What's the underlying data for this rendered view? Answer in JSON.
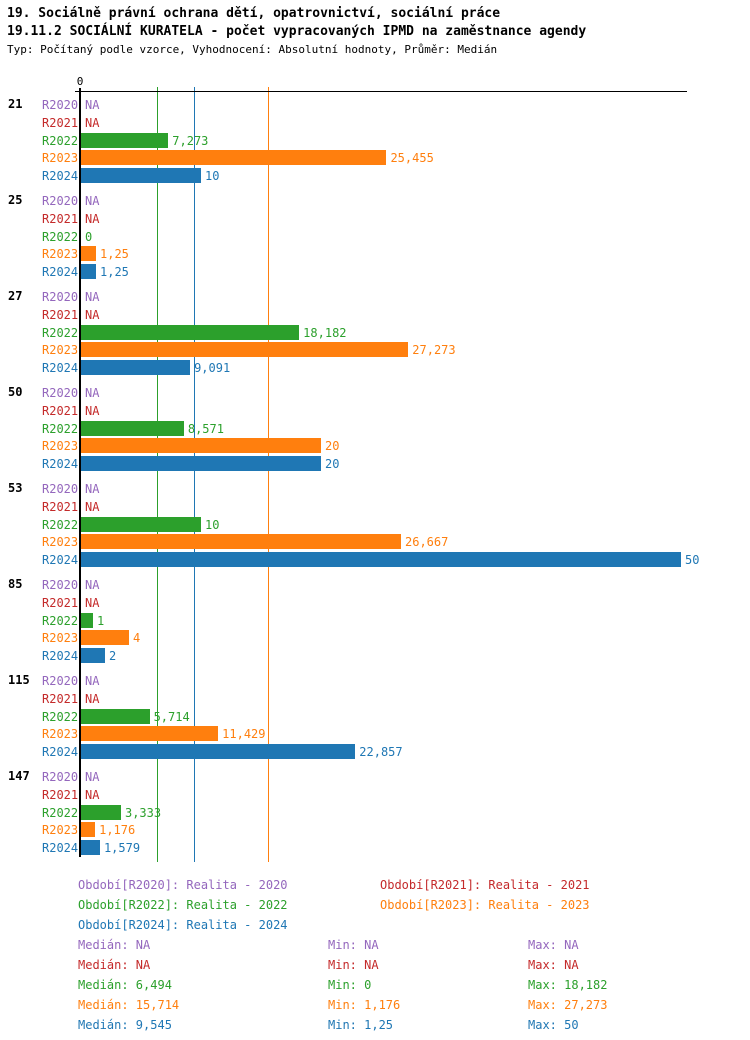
{
  "header": {
    "title_line1": "19. Sociálně právní ochrana dětí, opatrovnictví, sociální práce",
    "title_line2": "19.11.2 SOCIÁLNÍ KURATELA - počet vypracovaných IPMD na zaměstnance agendy",
    "subtitle": "Typ: Počítaný podle vzorce, Vyhodnocení: Absolutní hodnoty, Průměr: Medián"
  },
  "chart_data": {
    "type": "bar",
    "orientation": "horizontal",
    "axis": {
      "zero_label": "0",
      "xlim": [
        0,
        50
      ],
      "grid": "median-lines"
    },
    "series": [
      {
        "id": "R2020",
        "color": "#9467bd",
        "legend_label": "Období[R2020]: Realita - 2020",
        "median_label": "Medián: NA",
        "min_label": "Min: NA",
        "max_label": "Max: NA",
        "median_value": null,
        "min_value": null,
        "max_value": null
      },
      {
        "id": "R2021",
        "color": "#c42a2a",
        "legend_label": "Období[R2021]: Realita - 2021",
        "median_label": "Medián: NA",
        "min_label": "Min: NA",
        "max_label": "Max: NA",
        "median_value": null,
        "min_value": null,
        "max_value": null
      },
      {
        "id": "R2022",
        "color": "#2ca02c",
        "legend_label": "Období[R2022]: Realita - 2022",
        "median_label": "Medián: 6,494",
        "min_label": "Min: 0",
        "max_label": "Max: 18,182",
        "median_value": 6.494,
        "min_value": 0,
        "max_value": 18.182
      },
      {
        "id": "R2023",
        "color": "#ff7f0e",
        "legend_label": "Období[R2023]: Realita - 2023",
        "median_label": "Medián: 15,714",
        "min_label": "Min: 1,176",
        "max_label": "Max: 27,273",
        "median_value": 15.714,
        "min_value": 1.176,
        "max_value": 27.273
      },
      {
        "id": "R2024",
        "color": "#1f77b4",
        "legend_label": "Období[R2024]: Realita - 2024",
        "median_label": "Medián: 9,545",
        "min_label": "Min: 1,25",
        "max_label": "Max: 50",
        "median_value": 9.545,
        "min_value": 1.25,
        "max_value": 50
      }
    ],
    "groups": [
      {
        "label": "21",
        "values": [
          null,
          null,
          7.273,
          25.455,
          10
        ],
        "value_labels": [
          "NA",
          "NA",
          "7,273",
          "25,455",
          "10"
        ]
      },
      {
        "label": "25",
        "values": [
          null,
          null,
          0,
          1.25,
          1.25
        ],
        "value_labels": [
          "NA",
          "NA",
          "0",
          "1,25",
          "1,25"
        ]
      },
      {
        "label": "27",
        "values": [
          null,
          null,
          18.182,
          27.273,
          9.091
        ],
        "value_labels": [
          "NA",
          "NA",
          "18,182",
          "27,273",
          "9,091"
        ]
      },
      {
        "label": "50",
        "values": [
          null,
          null,
          8.571,
          20,
          20
        ],
        "value_labels": [
          "NA",
          "NA",
          "8,571",
          "20",
          "20"
        ]
      },
      {
        "label": "53",
        "values": [
          null,
          null,
          10,
          26.667,
          50
        ],
        "value_labels": [
          "NA",
          "NA",
          "10",
          "26,667",
          "50"
        ]
      },
      {
        "label": "85",
        "values": [
          null,
          null,
          1,
          4,
          2
        ],
        "value_labels": [
          "NA",
          "NA",
          "1",
          "4",
          "2"
        ]
      },
      {
        "label": "115",
        "values": [
          null,
          null,
          5.714,
          11.429,
          22.857
        ],
        "value_labels": [
          "NA",
          "NA",
          "5,714",
          "11,429",
          "22,857"
        ]
      },
      {
        "label": "147",
        "values": [
          null,
          null,
          3.333,
          1.176,
          1.579
        ],
        "value_labels": [
          "NA",
          "NA",
          "3,333",
          "1,176",
          "1,579"
        ]
      }
    ]
  }
}
